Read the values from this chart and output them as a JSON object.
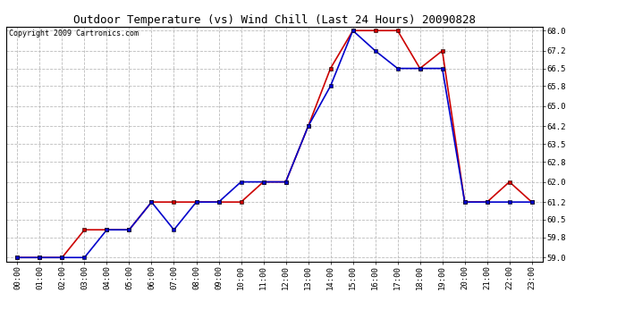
{
  "title": "Outdoor Temperature (vs) Wind Chill (Last 24 Hours) 20090828",
  "copyright": "Copyright 2009 Cartronics.com",
  "hours": [
    "00:00",
    "01:00",
    "02:00",
    "03:00",
    "04:00",
    "05:00",
    "06:00",
    "07:00",
    "08:00",
    "09:00",
    "10:00",
    "11:00",
    "12:00",
    "13:00",
    "14:00",
    "15:00",
    "16:00",
    "17:00",
    "18:00",
    "19:00",
    "20:00",
    "21:00",
    "22:00",
    "23:00"
  ],
  "temp": [
    59.0,
    59.0,
    59.0,
    60.1,
    60.1,
    60.1,
    61.2,
    61.2,
    61.2,
    61.2,
    61.2,
    62.0,
    62.0,
    64.2,
    66.5,
    68.0,
    68.0,
    68.0,
    66.5,
    67.2,
    61.2,
    61.2,
    62.0,
    61.2
  ],
  "wind_chill": [
    59.0,
    59.0,
    59.0,
    59.0,
    60.1,
    60.1,
    61.2,
    60.1,
    61.2,
    61.2,
    62.0,
    62.0,
    62.0,
    64.2,
    65.8,
    68.0,
    67.2,
    66.5,
    66.5,
    66.5,
    61.2,
    61.2,
    61.2,
    61.2
  ],
  "temp_color": "#cc0000",
  "wind_chill_color": "#0000cc",
  "bg_color": "#ffffff",
  "plot_bg_color": "#ffffff",
  "grid_color": "#bbbbbb",
  "ylim_min": 59.0,
  "ylim_max": 68.0,
  "yticks": [
    59.0,
    59.8,
    60.5,
    61.2,
    62.0,
    62.8,
    63.5,
    64.2,
    65.0,
    65.8,
    66.5,
    67.2,
    68.0
  ],
  "title_fontsize": 9,
  "copyright_fontsize": 6,
  "tick_fontsize": 6.5,
  "marker": "s",
  "marker_size": 2.5,
  "line_width": 1.2
}
